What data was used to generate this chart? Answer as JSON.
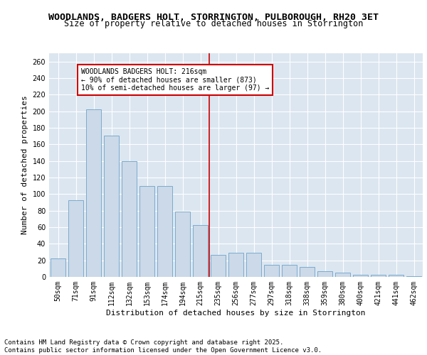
{
  "title1": "WOODLANDS, BADGERS HOLT, STORRINGTON, PULBOROUGH, RH20 3ET",
  "title2": "Size of property relative to detached houses in Storrington",
  "xlabel": "Distribution of detached houses by size in Storrington",
  "ylabel": "Number of detached properties",
  "categories": [
    "50sqm",
    "71sqm",
    "91sqm",
    "112sqm",
    "132sqm",
    "153sqm",
    "174sqm",
    "194sqm",
    "215sqm",
    "235sqm",
    "256sqm",
    "277sqm",
    "297sqm",
    "318sqm",
    "338sqm",
    "359sqm",
    "380sqm",
    "400sqm",
    "421sqm",
    "441sqm",
    "462sqm"
  ],
  "values": [
    22,
    93,
    202,
    171,
    140,
    110,
    110,
    79,
    63,
    27,
    29,
    29,
    15,
    15,
    12,
    7,
    5,
    3,
    3,
    3,
    1
  ],
  "bar_color": "#ccd9e8",
  "bar_edge_color": "#7aabcf",
  "highlight_line_color": "#cc0000",
  "annotation_text": "WOODLANDS BADGERS HOLT: 216sqm\n← 90% of detached houses are smaller (873)\n10% of semi-detached houses are larger (97) →",
  "annotation_box_color": "#ffffff",
  "annotation_box_edge_color": "#cc0000",
  "ylim": [
    0,
    270
  ],
  "yticks": [
    0,
    20,
    40,
    60,
    80,
    100,
    120,
    140,
    160,
    180,
    200,
    220,
    240,
    260
  ],
  "background_color": "#dce6f0",
  "grid_color": "#ffffff",
  "title1_fontsize": 9.5,
  "title2_fontsize": 8.5,
  "xlabel_fontsize": 8,
  "ylabel_fontsize": 8,
  "tick_fontsize": 7,
  "footer_text": "Contains HM Land Registry data © Crown copyright and database right 2025.\nContains public sector information licensed under the Open Government Licence v3.0.",
  "footer_fontsize": 6.5
}
